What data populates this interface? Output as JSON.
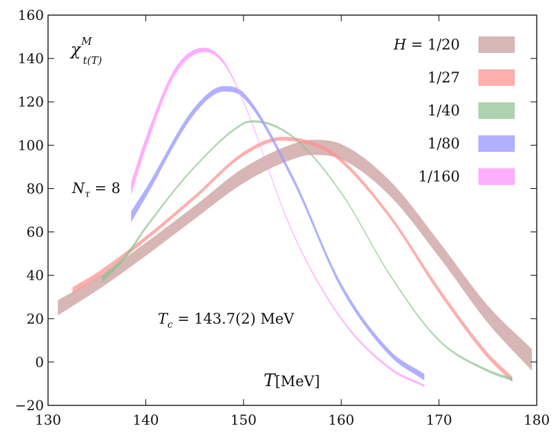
{
  "chart_data": {
    "type": "area",
    "xlabel_var": "T",
    "xlabel_unit": "[MeV]",
    "ylabel_main": "χ",
    "ylabel_sup": "M",
    "ylabel_sub": "t(T)",
    "xlim": [
      130,
      180
    ],
    "ylim": [
      -20,
      160
    ],
    "xticks": [
      "130",
      "140",
      "150",
      "160",
      "170",
      "180"
    ],
    "yticks": [
      "−20",
      "0",
      "20",
      "40",
      "60",
      "80",
      "100",
      "120",
      "140",
      "160"
    ],
    "annotations": {
      "ntau_var": "N",
      "ntau_sub": "τ",
      "ntau_rest": " = 8",
      "tc_var": "T",
      "tc_sub": "c",
      "tc_rest": " = 143.7(2) MeV"
    },
    "legend_position": "top-right",
    "series": [
      {
        "name": "H = 1/20",
        "label_var": "H",
        "label_rest": " = 1/20",
        "color": "#c99a9a",
        "opacity": 0.72,
        "x_range": [
          131,
          179.5
        ],
        "points": [
          [
            131,
            25,
            7
          ],
          [
            135,
            36,
            6
          ],
          [
            140,
            52,
            6
          ],
          [
            145,
            69,
            6
          ],
          [
            150,
            86,
            7
          ],
          [
            155,
            97,
            7
          ],
          [
            157,
            99,
            7
          ],
          [
            160,
            97,
            7
          ],
          [
            165,
            80,
            7
          ],
          [
            170,
            52,
            7
          ],
          [
            175,
            22,
            8
          ],
          [
            179.5,
            1,
            10
          ]
        ]
      },
      {
        "name": "1/27",
        "label_var": "",
        "label_rest": "1/27",
        "color": "#ff8f8f",
        "opacity": 0.72,
        "x_range": [
          132.5,
          177.5
        ],
        "points": [
          [
            132.5,
            33,
            3
          ],
          [
            135,
            40,
            2.5
          ],
          [
            140,
            57,
            2
          ],
          [
            145,
            76,
            1.8
          ],
          [
            150,
            96,
            1.8
          ],
          [
            154,
            103,
            1.8
          ],
          [
            158,
            99,
            1.8
          ],
          [
            160,
            93,
            2
          ],
          [
            165,
            67,
            2
          ],
          [
            170,
            33,
            2.5
          ],
          [
            175,
            3,
            2.5
          ],
          [
            177.5,
            -8,
            2.5
          ]
        ]
      },
      {
        "name": "1/40",
        "label_var": "",
        "label_rest": "1/40",
        "color": "#8fc08f",
        "opacity": 0.72,
        "x_range": [
          135.5,
          177.5
        ],
        "points": [
          [
            135.5,
            38,
            3
          ],
          [
            138,
            49,
            2
          ],
          [
            140,
            62,
            1.5
          ],
          [
            145,
            90,
            1
          ],
          [
            150,
            110,
            1
          ],
          [
            151,
            111,
            1
          ],
          [
            155,
            104,
            1
          ],
          [
            160,
            78,
            1
          ],
          [
            165,
            40,
            1
          ],
          [
            170,
            10,
            1
          ],
          [
            175,
            -4,
            1.2
          ],
          [
            177.5,
            -8,
            1.5
          ]
        ]
      },
      {
        "name": "1/80",
        "label_var": "",
        "label_rest": "1/80",
        "color": "#9a9aff",
        "opacity": 0.78,
        "x_range": [
          138.5,
          168.5
        ],
        "points": [
          [
            138.5,
            67,
            5
          ],
          [
            140,
            78,
            4
          ],
          [
            145,
            116,
            3
          ],
          [
            148,
            126,
            2.5
          ],
          [
            150,
            123,
            2.5
          ],
          [
            155,
            85,
            2.5
          ],
          [
            160,
            35,
            2.5
          ],
          [
            165,
            4,
            2.5
          ],
          [
            168.5,
            -7,
            3
          ]
        ]
      },
      {
        "name": "1/160",
        "label_var": "",
        "label_rest": "1/160",
        "color": "#ff99ff",
        "opacity": 0.8,
        "x_range": [
          138.5,
          168.5
        ],
        "points": [
          [
            138.5,
            80,
            6
          ],
          [
            140,
            101,
            5
          ],
          [
            143,
            134,
            3
          ],
          [
            146,
            144,
            2
          ],
          [
            148,
            138,
            1.5
          ],
          [
            150,
            120,
            1
          ],
          [
            155,
            60,
            1
          ],
          [
            160,
            20,
            1
          ],
          [
            165,
            -3,
            1
          ],
          [
            168.5,
            -11,
            1
          ]
        ]
      }
    ]
  }
}
